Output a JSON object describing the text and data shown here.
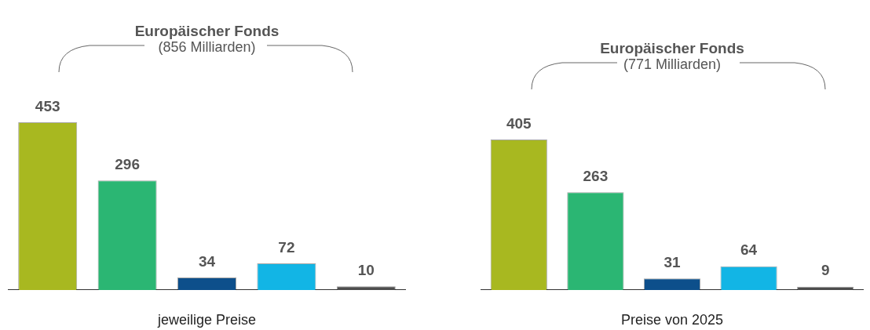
{
  "chart_data": [
    {
      "type": "bar",
      "title": "Europäischer Fonds",
      "subtitle": "(856 Milliarden)",
      "xlabel": "jeweilige Preise",
      "categories": [
        null,
        null,
        null,
        null,
        null
      ],
      "values": [
        453,
        296,
        34,
        72,
        10
      ],
      "colors": [
        "#a8b820",
        "#2bb673",
        "#0d4f8b",
        "#12b5e5",
        "#4d4d4d"
      ],
      "data_labels": true,
      "grid": false,
      "legend": false,
      "tick_labels": false
    },
    {
      "type": "bar",
      "title": "Europäischer Fonds",
      "subtitle": "(771 Milliarden)",
      "xlabel": "Preise von 2025",
      "categories": [
        null,
        null,
        null,
        null,
        null
      ],
      "values": [
        405,
        263,
        31,
        64,
        9
      ],
      "colors": [
        "#a8b820",
        "#2bb673",
        "#0d4f8b",
        "#12b5e5",
        "#4d4d4d"
      ],
      "data_labels": true,
      "grid": false,
      "legend": false,
      "tick_labels": false
    }
  ]
}
